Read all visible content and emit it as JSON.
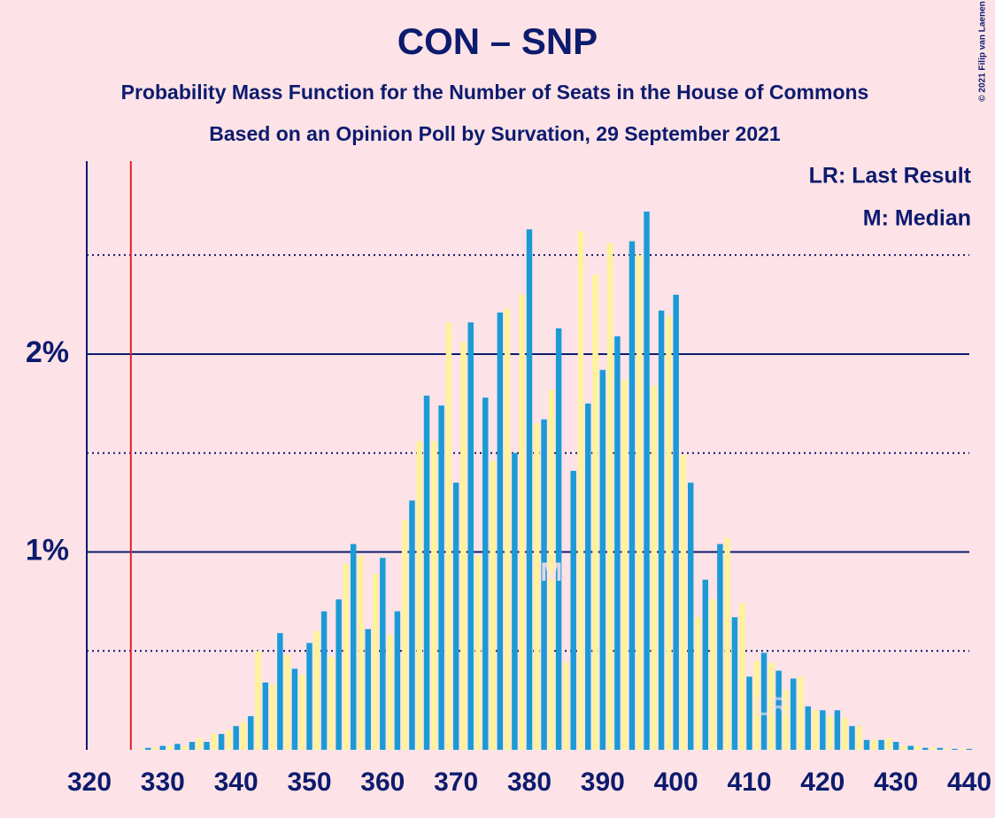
{
  "chart_data": {
    "type": "bar",
    "title": "CON – SNP",
    "subtitle": "Probability Mass Function for the Number of Seats in the House of Commons",
    "subtitle2": "Based on an Opinion Poll by Survation, 29 September 2021",
    "copyright": "© 2021 Filip van Laenen",
    "legend": [
      "LR: Last Result",
      "M: Median"
    ],
    "legend_corner": "top-right",
    "x": [
      320,
      321,
      322,
      323,
      324,
      325,
      326,
      327,
      328,
      329,
      330,
      331,
      332,
      333,
      334,
      335,
      336,
      337,
      338,
      339,
      340,
      341,
      342,
      343,
      344,
      345,
      346,
      347,
      348,
      349,
      350,
      351,
      352,
      353,
      354,
      355,
      356,
      357,
      358,
      359,
      360,
      361,
      362,
      363,
      364,
      365,
      366,
      367,
      368,
      369,
      370,
      371,
      372,
      373,
      374,
      375,
      376,
      377,
      378,
      379,
      380,
      381,
      382,
      383,
      384,
      385,
      386,
      387,
      388,
      389,
      390,
      391,
      392,
      393,
      394,
      395,
      396,
      397,
      398,
      399,
      400,
      401,
      402,
      403,
      404,
      405,
      406,
      407,
      408,
      409,
      410,
      411,
      412,
      413,
      414,
      415,
      416,
      417,
      418,
      419,
      420,
      421,
      422,
      423,
      424,
      425,
      426,
      427,
      428,
      429,
      430,
      431,
      432,
      433,
      434,
      435,
      436,
      437,
      438,
      439,
      440
    ],
    "values": [
      0,
      0,
      0,
      0,
      0,
      0,
      0,
      0.005,
      0.01,
      0.01,
      0.02,
      0.02,
      0.03,
      0.02,
      0.04,
      0.06,
      0.04,
      0.08,
      0.08,
      0.1,
      0.12,
      0.14,
      0.17,
      0.5,
      0.34,
      0.33,
      0.59,
      0.48,
      0.41,
      0.38,
      0.54,
      0.6,
      0.7,
      0.47,
      0.76,
      0.94,
      1.04,
      0.98,
      0.61,
      0.89,
      0.97,
      0.58,
      0.7,
      1.16,
      1.26,
      1.56,
      1.79,
      1.56,
      1.74,
      2.16,
      1.35,
      2.06,
      2.16,
      0.98,
      1.78,
      1.46,
      2.21,
      2.23,
      1.5,
      2.3,
      2.63,
      1.65,
      1.67,
      1.82,
      2.13,
      0.44,
      1.41,
      2.62,
      1.75,
      2.4,
      1.92,
      2.56,
      2.09,
      1.87,
      2.57,
      2.5,
      2.72,
      1.84,
      2.22,
      2.19,
      2.3,
      1.49,
      1.35,
      0.67,
      0.86,
      0.76,
      1.04,
      1.07,
      0.67,
      0.74,
      0.37,
      0.45,
      0.49,
      0.44,
      0.4,
      0.3,
      0.36,
      0.37,
      0.22,
      0.2,
      0.2,
      0.17,
      0.2,
      0.16,
      0.12,
      0.12,
      0.05,
      0.05,
      0.05,
      0.06,
      0.04,
      0.02,
      0.02,
      0.02,
      0.01,
      0.01,
      0.01,
      0.005,
      0.005,
      0.005,
      0.005
    ],
    "bar_colors": [
      "#1b9ad6",
      "#fff29a"
    ],
    "xlim": [
      320,
      440
    ],
    "xticks": [
      320,
      330,
      340,
      350,
      360,
      370,
      380,
      390,
      400,
      410,
      420,
      430,
      440
    ],
    "ylim": [
      0,
      2.975
    ],
    "yticks": [
      {
        "value": 1,
        "label": "1%"
      },
      {
        "value": 2,
        "label": "2%"
      }
    ],
    "minor_grid": [
      0.5,
      1.5,
      2.5
    ],
    "grid": true,
    "majority": 326,
    "majority_color": "#e0202a",
    "median": 383,
    "median_label": "M",
    "last_result": 413,
    "last_result_label": "LR"
  }
}
